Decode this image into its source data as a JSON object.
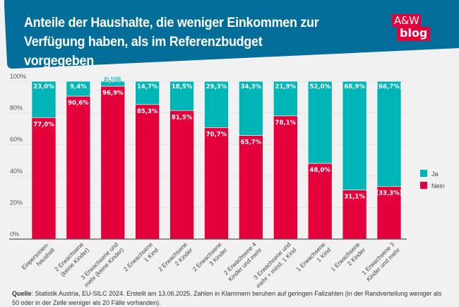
{
  "header": {
    "title": "Anteile der Haushalte, die weniger Einkommen zur Verfügung haben, als im Referenzbudget vorgegeben",
    "logo_line1": "A&W",
    "logo_line2": "blog"
  },
  "colors": {
    "header_bg": "#046e9b",
    "ja": "#00b5b5",
    "nein": "#e4003b",
    "logo_bg": "#e4003b",
    "background": "#f1f1f1"
  },
  "chart_data": {
    "type": "bar",
    "stacked": true,
    "title": "Anteile der Haushalte, die weniger Einkommen zur Verfügung haben, als im Referenzbudget vorgegeben",
    "xlabel": "",
    "ylabel": "",
    "ylim": [
      0,
      100
    ],
    "yticks": [
      "0%",
      "20%",
      "40%",
      "60%",
      "80%",
      "100%"
    ],
    "grid": true,
    "legend_position": "right",
    "categories": [
      "Einpersonen-\nhaushalt",
      "2 Erwachsene\n(keine Kinder)",
      "3 Erwachsene und\nmehr (keine Kinder)",
      "2 Erwachsene\n1 Kind",
      "2 Erwachsene\n2 Kinder",
      "2 Erwachsene\n3 Kinder",
      "2 Erwachsene 4\nKinder und mehr",
      "3 Erwachsene und\nmehr + mind. 1 Kind",
      "1 Erwachsene\n1 Kind",
      "1 Erwachsene\n2 Kinder",
      "1 Erwachsene 3\nKinder und mehr"
    ],
    "series": [
      {
        "name": "Nein",
        "values": [
          77.0,
          90.6,
          96.9,
          85.3,
          81.5,
          70.7,
          65.7,
          78.1,
          48.0,
          31.1,
          33.3
        ],
        "labels": [
          "77,0%",
          "90,6%",
          "96,9%",
          "85,3%",
          "81,5%",
          "70,7%",
          "65,7%",
          "78,1%",
          "48,0%",
          "31,1%",
          "(33,3%)"
        ]
      },
      {
        "name": "Ja",
        "values": [
          23.0,
          9.4,
          3.1,
          14.7,
          18.5,
          29.3,
          34.3,
          21.9,
          52.0,
          68.9,
          66.7
        ],
        "labels": [
          "23,0%",
          "9,4%",
          "3,1%",
          "14,7%",
          "18,5%",
          "29,3%",
          "34,3%",
          "21,9%",
          "52,0%",
          "68,9%",
          "(66,7%)"
        ]
      }
    ],
    "legend": [
      "Ja",
      "Nein"
    ]
  },
  "footer": {
    "source_label": "Quelle",
    "source_text": ": Statistik Austria, EU-SILC 2024. Erstellt am 13.06.2025. Zahlen in Klammern beruhen auf geringen Fallzahlen (in der Randverteilung weniger als 50 oder in der Zelle weniger als 20 Fälle vorhanden)."
  }
}
